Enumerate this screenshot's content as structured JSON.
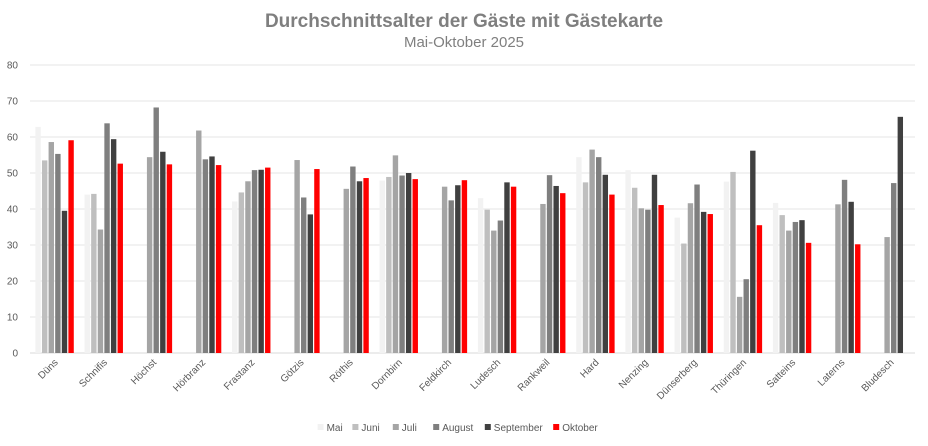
{
  "chart_data": {
    "type": "bar",
    "title": "Durchschnittsalter der Gäste mit Gästekarte",
    "subtitle": "Mai-Oktober 2025",
    "xlabel": "",
    "ylabel": "",
    "ylim": [
      0,
      80
    ],
    "yticks": [
      0,
      10,
      20,
      30,
      40,
      50,
      60,
      70,
      80
    ],
    "grid": true,
    "legend": "bottom",
    "categories": [
      "Düns",
      "Schnifis",
      "Höchst",
      "Hörbranz",
      "Frastanz",
      "Götzis",
      "Röthis",
      "Dornbirn",
      "Feldkirch",
      "Ludesch",
      "Rankweil",
      "Hard",
      "Nenzing",
      "Dünserberg",
      "Thüringen",
      "Satteins",
      "Laterns",
      "Bludesch"
    ],
    "series": [
      {
        "name": "Mai",
        "color": "#f2f2f2",
        "values": [
          62.8,
          44.0,
          null,
          null,
          42.1,
          null,
          null,
          47.9,
          null,
          43.0,
          null,
          54.4,
          50.8,
          37.6,
          47.6,
          41.7,
          null,
          null
        ]
      },
      {
        "name": "Juni",
        "color": "#bfbfbf",
        "values": [
          53.5,
          44.2,
          null,
          null,
          44.6,
          null,
          null,
          48.9,
          null,
          39.8,
          null,
          47.4,
          45.9,
          30.4,
          50.3,
          38.3,
          null,
          null
        ]
      },
      {
        "name": "Juli",
        "color": "#a5a5a5",
        "values": [
          58.6,
          34.3,
          54.4,
          61.8,
          47.7,
          53.6,
          45.6,
          54.9,
          46.2,
          34.0,
          41.4,
          56.5,
          40.2,
          41.6,
          15.6,
          34.0,
          41.3,
          32.2
        ]
      },
      {
        "name": "August",
        "color": "#7f7f7f",
        "values": [
          55.3,
          63.8,
          68.2,
          53.8,
          50.8,
          43.2,
          51.8,
          49.3,
          42.4,
          36.8,
          49.4,
          54.4,
          39.8,
          46.8,
          20.5,
          36.4,
          48.1,
          47.2
        ]
      },
      {
        "name": "September",
        "color": "#404040",
        "values": [
          39.5,
          59.4,
          55.9,
          54.6,
          50.9,
          38.5,
          47.7,
          50.0,
          46.6,
          47.4,
          46.4,
          49.5,
          49.5,
          39.2,
          56.2,
          36.9,
          42.0,
          65.6
        ]
      },
      {
        "name": "Oktober",
        "color": "#ff0000",
        "values": [
          59.1,
          52.6,
          52.4,
          52.2,
          51.5,
          51.1,
          48.6,
          48.3,
          48.0,
          46.2,
          44.4,
          44.0,
          41.1,
          38.6,
          35.5,
          30.6,
          30.2,
          null
        ]
      }
    ]
  }
}
